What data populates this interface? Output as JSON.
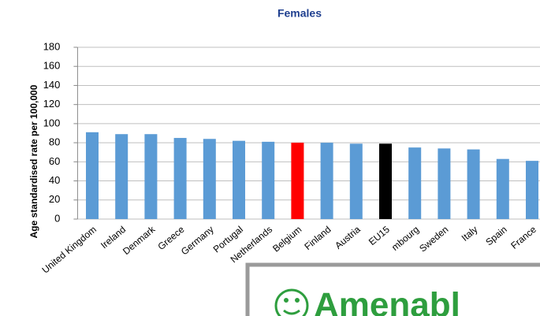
{
  "chart_data": {
    "type": "bar",
    "title": "Females",
    "y_label": "Age standardised rate per 100,000",
    "categories": [
      "United Kingdom",
      "Ireland",
      "Denmark",
      "Greece",
      "Germany",
      "Portugal",
      "Netherlands",
      "Belgium",
      "Finland",
      "Austria",
      "EU15",
      "mbourg",
      "Sweden",
      "Italy",
      "Spain",
      "France"
    ],
    "values": [
      91,
      89,
      89,
      85,
      84,
      82,
      81,
      80,
      80,
      79,
      79,
      75,
      74,
      73,
      63,
      61
    ],
    "colors": [
      "#5b9bd5",
      "#5b9bd5",
      "#5b9bd5",
      "#5b9bd5",
      "#5b9bd5",
      "#5b9bd5",
      "#5b9bd5",
      "#ff0000",
      "#5b9bd5",
      "#5b9bd5",
      "#000000",
      "#5b9bd5",
      "#5b9bd5",
      "#5b9bd5",
      "#5b9bd5",
      "#5b9bd5"
    ],
    "ylim": [
      0,
      180
    ],
    "yticks": [
      0,
      20,
      40,
      60,
      80,
      100,
      120,
      140,
      160,
      180
    ],
    "grid": true
  },
  "overlay": {
    "text": "Amenabl"
  }
}
